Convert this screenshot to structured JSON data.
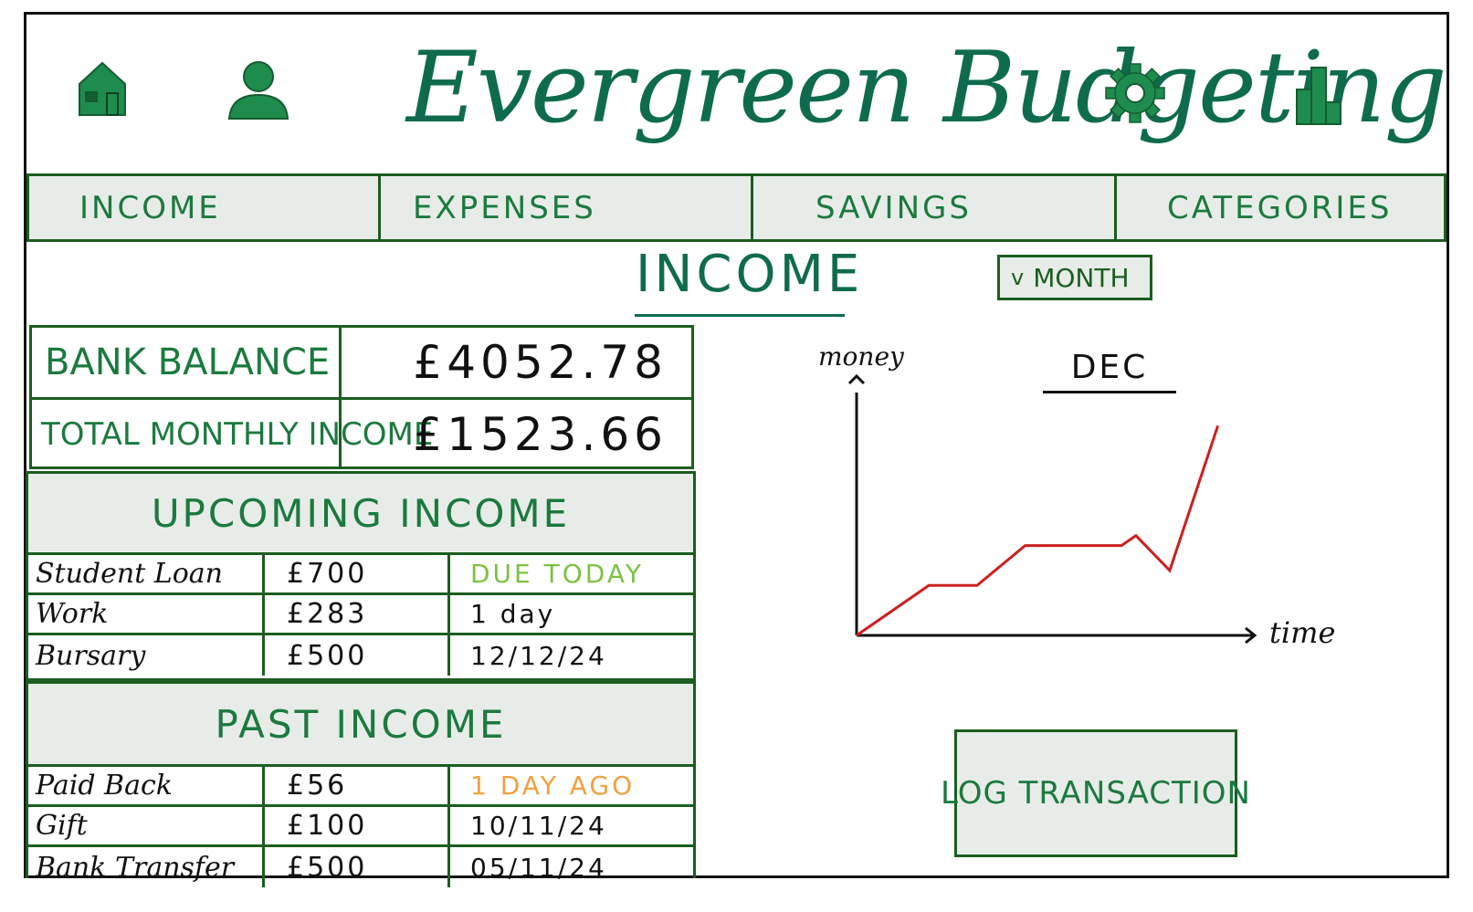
{
  "header": {
    "title": "Evergreen Budgeting",
    "icons": [
      "home-icon",
      "user-icon",
      "gear-icon",
      "bar-chart-icon"
    ],
    "accent_color": "#0f6b4e"
  },
  "nav": {
    "tabs": [
      {
        "label": "INCOME"
      },
      {
        "label": "EXPENSES"
      },
      {
        "label": "SAVINGS"
      },
      {
        "label": "CATEGORIES"
      }
    ]
  },
  "page": {
    "title": "INCOME",
    "period_select": {
      "chevron": "v",
      "value": "MONTH"
    }
  },
  "summary": {
    "bank_balance_label": "BANK BALANCE",
    "bank_balance_value": "£4052.78",
    "total_monthly_income_label": "TOTAL MONTHLY INCOME",
    "total_monthly_income_value": "£1523.66"
  },
  "upcoming": {
    "heading": "UPCOMING INCOME",
    "rows": [
      {
        "name": "Student Loan",
        "amount": "£700",
        "when": "DUE TODAY",
        "when_color": "#7cc142"
      },
      {
        "name": "Work",
        "amount": "£283",
        "when": "1 day"
      },
      {
        "name": "Bursary",
        "amount": "£500",
        "when": "12/12/24"
      }
    ]
  },
  "past": {
    "heading": "PAST INCOME",
    "rows": [
      {
        "name": "Paid Back",
        "amount": "£56",
        "when": "1 DAY AGO",
        "when_color": "#f2a03d"
      },
      {
        "name": "Gift",
        "amount": "£100",
        "when": "10/11/24"
      },
      {
        "name": "Bank Transfer",
        "amount": "£500",
        "when": "05/11/24"
      }
    ]
  },
  "chart_data": {
    "type": "line",
    "title": "DEC",
    "xlabel": "time",
    "ylabel": "money",
    "series": [
      {
        "color": "#cc1f1f",
        "points": [
          [
            0,
            0
          ],
          [
            1.5,
            1.0
          ],
          [
            2.5,
            1.0
          ],
          [
            3.5,
            1.8
          ],
          [
            5.5,
            1.8
          ],
          [
            5.8,
            2.0
          ],
          [
            6.5,
            1.3
          ],
          [
            7.5,
            4.2
          ]
        ]
      }
    ],
    "xlim": [
      0,
      8
    ],
    "ylim": [
      0,
      4.5
    ],
    "grid": false
  },
  "actions": {
    "log_transaction_label": "LOG TRANSACTION"
  }
}
